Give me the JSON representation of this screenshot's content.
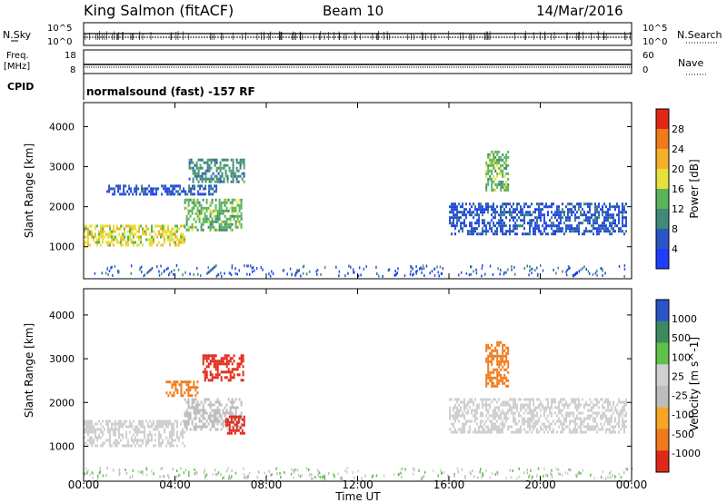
{
  "header": {
    "station": "King Salmon (fitACF)",
    "beam": "Beam 10",
    "date": "14/Mar/2016"
  },
  "status_panels": {
    "nsky_label": "N.Sky",
    "nsearch_label": "N.Search",
    "noise_ticks_left": [
      "10^5",
      "10^0"
    ],
    "noise_ticks_right": [
      "10^5",
      "10^0"
    ],
    "freq_label_1": "Freq.",
    "freq_label_2": "[MHz]",
    "freq_ticks": [
      "18",
      "8"
    ],
    "nave_label": "Nave",
    "nave_ticks": [
      "60",
      "0"
    ],
    "cpid_label": "CPID",
    "cpid_text": "normalsound (fast) -157 RF"
  },
  "colors": {
    "power_scale": [
      "#1f3cff",
      "#2a55c8",
      "#3f8a7a",
      "#5bb35a",
      "#e6e03a",
      "#f5b026",
      "#f07a1a",
      "#e02818"
    ],
    "velocity_scale": [
      "#e02818",
      "#f07a1a",
      "#f5a623",
      "#bdbdbd",
      "#d0d0d0",
      "#5ec24a",
      "#3d8a5e",
      "#2a55c8"
    ]
  },
  "chart_data": [
    {
      "type": "heatmap",
      "name": "power",
      "ylabel": "Slant Range [km]",
      "ylim": [
        200,
        4600
      ],
      "yticks": [
        "4000",
        "3000",
        "2000",
        "1000"
      ],
      "xlim": [
        "00:00",
        "24:00"
      ],
      "colorbar_label": "Power [dB]",
      "colorbar_ticks": [
        "28",
        "24",
        "20",
        "16",
        "12",
        "8",
        "4"
      ],
      "bands": [
        {
          "t0": 0.0,
          "t1": 4.4,
          "r0": 1050,
          "r1": 1550,
          "level": 16
        },
        {
          "t0": 4.4,
          "t1": 6.9,
          "r0": 1400,
          "r1": 2200,
          "level": 12
        },
        {
          "t0": 1.0,
          "t1": 5.8,
          "r0": 2300,
          "r1": 2550,
          "level": 6
        },
        {
          "t0": 4.6,
          "t1": 7.0,
          "r0": 2600,
          "r1": 3200,
          "level": 8
        },
        {
          "t0": 16.0,
          "t1": 23.8,
          "r0": 1300,
          "r1": 2100,
          "level": 6
        },
        {
          "t0": 17.6,
          "t1": 18.6,
          "r0": 2400,
          "r1": 3400,
          "level": 12
        }
      ]
    },
    {
      "type": "heatmap",
      "name": "velocity",
      "ylabel": "Slant Range [km]",
      "ylim": [
        200,
        4600
      ],
      "yticks": [
        "4000",
        "3000",
        "2000",
        "1000"
      ],
      "xlabel": "Time UT",
      "xticks": [
        "00:00",
        "04:00",
        "08:00",
        "12:00",
        "16:00",
        "20:00",
        "00:00"
      ],
      "colorbar_label": "Velocity [m s^-1]",
      "colorbar_ticks": [
        "1000",
        "500",
        "100",
        "25",
        "-25",
        "-100",
        "-500",
        "-1000"
      ],
      "bands": [
        {
          "t0": 0.0,
          "t1": 4.4,
          "r0": 1000,
          "r1": 1600,
          "vel": 0
        },
        {
          "t0": 4.4,
          "t1": 6.9,
          "r0": 1400,
          "r1": 2100,
          "vel": -60
        },
        {
          "t0": 3.6,
          "t1": 5.0,
          "r0": 2150,
          "r1": 2500,
          "vel": -450
        },
        {
          "t0": 5.2,
          "t1": 7.0,
          "r0": 2500,
          "r1": 3100,
          "vel": -600
        },
        {
          "t0": 6.2,
          "t1": 7.0,
          "r0": 1300,
          "r1": 1700,
          "vel": -700
        },
        {
          "t0": 16.0,
          "t1": 23.8,
          "r0": 1300,
          "r1": 2100,
          "vel": 0
        },
        {
          "t0": 17.6,
          "t1": 18.6,
          "r0": 2400,
          "r1": 3400,
          "vel": -300
        }
      ]
    }
  ]
}
